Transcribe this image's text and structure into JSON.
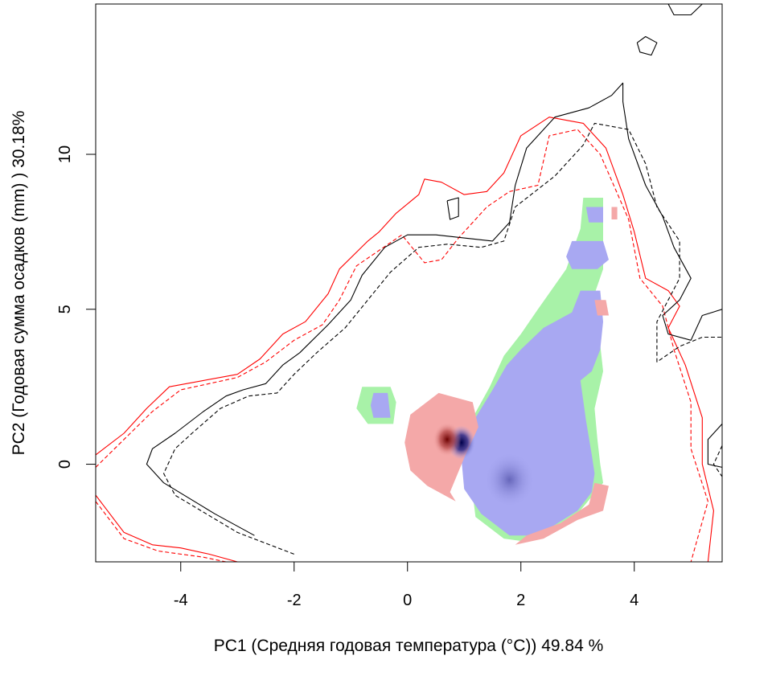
{
  "chart_data": {
    "type": "heatmap",
    "title": "",
    "xlabel": "PC1 (Средняя годовая температура (°C)) 49.84 %",
    "ylabel": "PC2 (Годовая сумма осадков  (mm) ) 30.18%",
    "xlim": [
      -5.5,
      5.55
    ],
    "ylim": [
      -3.15,
      14.85
    ],
    "x_ticks": [
      -4,
      -2,
      0,
      2,
      4
    ],
    "y_ticks": [
      0,
      5,
      10
    ],
    "x_tick_labels": [
      "-4",
      "-2",
      "0",
      "2",
      "4"
    ],
    "y_tick_labels": [
      "0",
      "5",
      "10"
    ],
    "grid": false,
    "colors": {
      "stable": "#a8a8f2",
      "expansion": "#f4a8a8",
      "unfilling": "#a8f2a8",
      "density_high": "#00004a",
      "density_peak_red": "#6b0000",
      "contour_red": "#ff0000",
      "contour_black": "#000000"
    },
    "contours": [
      {
        "color": "#ff0000",
        "dash": "solid",
        "points": [
          [
            -5.5,
            0.3
          ],
          [
            -5.0,
            1.0
          ],
          [
            -4.6,
            1.8
          ],
          [
            -4.2,
            2.5
          ],
          [
            -3.6,
            2.7
          ],
          [
            -3.0,
            2.9
          ],
          [
            -2.6,
            3.4
          ],
          [
            -2.2,
            4.2
          ],
          [
            -1.8,
            4.6
          ],
          [
            -1.4,
            5.5
          ],
          [
            -1.2,
            6.3
          ],
          [
            -0.7,
            7.2
          ],
          [
            -0.5,
            7.5
          ],
          [
            -0.2,
            8.1
          ],
          [
            0.2,
            8.7
          ],
          [
            0.3,
            9.2
          ],
          [
            0.6,
            9.1
          ],
          [
            1.0,
            8.7
          ],
          [
            1.4,
            8.8
          ],
          [
            1.7,
            9.4
          ],
          [
            2.0,
            10.6
          ],
          [
            2.5,
            11.2
          ],
          [
            3.1,
            11.0
          ],
          [
            3.5,
            10.2
          ],
          [
            3.8,
            8.7
          ],
          [
            4.0,
            7.5
          ],
          [
            4.2,
            6.0
          ],
          [
            4.6,
            5.6
          ],
          [
            4.8,
            5.1
          ],
          [
            4.6,
            4.4
          ],
          [
            4.9,
            3.2
          ],
          [
            5.2,
            1.5
          ],
          [
            5.2,
            0.0
          ],
          [
            5.4,
            -1.5
          ],
          [
            5.3,
            -3.15
          ]
        ]
      },
      {
        "color": "#ff0000",
        "dash": "dashed",
        "points": [
          [
            -5.5,
            -0.1
          ],
          [
            -5.0,
            0.8
          ],
          [
            -4.5,
            1.7
          ],
          [
            -4.0,
            2.4
          ],
          [
            -3.5,
            2.6
          ],
          [
            -3.0,
            2.8
          ],
          [
            -2.5,
            3.3
          ],
          [
            -2.0,
            4.0
          ],
          [
            -1.5,
            4.5
          ],
          [
            -1.2,
            5.3
          ],
          [
            -0.9,
            6.4
          ],
          [
            -0.5,
            6.9
          ],
          [
            -0.1,
            7.4
          ],
          [
            0.3,
            6.5
          ],
          [
            0.6,
            6.6
          ],
          [
            0.9,
            7.3
          ],
          [
            1.4,
            8.3
          ],
          [
            1.8,
            8.8
          ],
          [
            2.3,
            9.0
          ],
          [
            2.5,
            10.6
          ],
          [
            3.0,
            10.8
          ],
          [
            3.4,
            10.0
          ],
          [
            3.9,
            7.9
          ],
          [
            4.1,
            6.0
          ],
          [
            4.5,
            5.1
          ],
          [
            4.7,
            3.7
          ],
          [
            5.0,
            2.0
          ],
          [
            5.0,
            0.5
          ],
          [
            5.3,
            -1.2
          ],
          [
            5.0,
            -3.15
          ]
        ]
      },
      {
        "color": "#ff0000",
        "dash": "solid",
        "points": [
          [
            -5.5,
            -1.0
          ],
          [
            -5.0,
            -2.2
          ],
          [
            -4.5,
            -2.6
          ],
          [
            -4.0,
            -2.7
          ],
          [
            -3.5,
            -2.9
          ],
          [
            -3.0,
            -3.15
          ]
        ]
      },
      {
        "color": "#ff0000",
        "dash": "dashed",
        "points": [
          [
            -5.5,
            -1.2
          ],
          [
            -5.0,
            -2.4
          ],
          [
            -4.4,
            -2.8
          ],
          [
            -3.6,
            -3.0
          ],
          [
            -3.2,
            -3.15
          ]
        ]
      },
      {
        "color": "#000000",
        "dash": "solid",
        "points": [
          [
            -2.7,
            -2.3
          ],
          [
            -3.4,
            -1.6
          ],
          [
            -4.3,
            -0.6
          ],
          [
            -4.6,
            0.0
          ],
          [
            -4.5,
            0.5
          ],
          [
            -4.1,
            1.0
          ],
          [
            -3.6,
            1.7
          ],
          [
            -3.2,
            2.2
          ],
          [
            -2.9,
            2.4
          ],
          [
            -2.5,
            2.6
          ],
          [
            -2.2,
            3.2
          ],
          [
            -1.9,
            3.6
          ],
          [
            -1.4,
            4.5
          ],
          [
            -1.0,
            5.3
          ],
          [
            -0.8,
            6.1
          ],
          [
            -0.4,
            7.0
          ],
          [
            0.0,
            7.4
          ],
          [
            0.5,
            7.4
          ],
          [
            1.0,
            7.3
          ],
          [
            1.5,
            7.2
          ],
          [
            1.8,
            7.8
          ],
          [
            1.9,
            9.0
          ],
          [
            2.1,
            10.2
          ],
          [
            2.6,
            11.2
          ],
          [
            3.2,
            11.5
          ],
          [
            3.6,
            11.9
          ],
          [
            3.8,
            12.3
          ],
          [
            3.8,
            11.7
          ],
          [
            3.9,
            10.5
          ],
          [
            4.2,
            9.0
          ],
          [
            4.5,
            8.0
          ],
          [
            4.7,
            7.0
          ],
          [
            5.0,
            6.0
          ],
          [
            4.8,
            5.3
          ],
          [
            4.5,
            4.8
          ],
          [
            4.6,
            4.2
          ],
          [
            5.0,
            4.0
          ],
          [
            5.2,
            4.8
          ],
          [
            5.55,
            5.0
          ]
        ]
      },
      {
        "color": "#000000",
        "dash": "dashed",
        "points": [
          [
            -2.0,
            -2.9
          ],
          [
            -3.0,
            -2.2
          ],
          [
            -4.1,
            -1.0
          ],
          [
            -4.3,
            -0.3
          ],
          [
            -4.1,
            0.5
          ],
          [
            -3.8,
            1.0
          ],
          [
            -3.3,
            1.8
          ],
          [
            -2.8,
            2.2
          ],
          [
            -2.3,
            2.3
          ],
          [
            -2.0,
            2.9
          ],
          [
            -1.6,
            3.6
          ],
          [
            -1.1,
            4.4
          ],
          [
            -0.7,
            5.3
          ],
          [
            -0.3,
            6.2
          ],
          [
            0.2,
            7.0
          ],
          [
            0.7,
            7.1
          ],
          [
            1.3,
            7.0
          ],
          [
            1.7,
            7.2
          ],
          [
            1.9,
            8.3
          ],
          [
            2.6,
            9.3
          ],
          [
            3.1,
            10.3
          ],
          [
            3.3,
            11.0
          ],
          [
            3.9,
            10.8
          ],
          [
            4.2,
            9.7
          ],
          [
            4.4,
            8.3
          ],
          [
            4.8,
            7.2
          ],
          [
            4.8,
            6.0
          ],
          [
            4.4,
            4.6
          ],
          [
            4.4,
            3.3
          ],
          [
            4.8,
            3.8
          ],
          [
            5.2,
            4.1
          ],
          [
            5.55,
            4.1
          ]
        ]
      },
      {
        "color": "#000000",
        "dash": "solid",
        "points": [
          [
            5.55,
            1.3
          ],
          [
            5.3,
            0.8
          ],
          [
            5.3,
            0.0
          ],
          [
            5.55,
            -0.1
          ]
        ]
      },
      {
        "color": "#000000",
        "dash": "dashed",
        "points": [
          [
            5.55,
            0.6
          ],
          [
            5.4,
            0.0
          ],
          [
            5.55,
            -0.4
          ]
        ]
      },
      {
        "color": "#000000",
        "dash": "solid",
        "points": [
          [
            0.7,
            8.5
          ],
          [
            0.9,
            8.6
          ],
          [
            0.9,
            8.0
          ],
          [
            0.75,
            7.9
          ],
          [
            0.7,
            8.5
          ]
        ]
      },
      {
        "color": "#000000",
        "dash": "solid",
        "points": [
          [
            4.05,
            13.6
          ],
          [
            4.2,
            13.8
          ],
          [
            4.4,
            13.6
          ],
          [
            4.3,
            13.2
          ],
          [
            4.1,
            13.3
          ],
          [
            4.05,
            13.6
          ]
        ]
      },
      {
        "color": "#000000",
        "dash": "solid",
        "points": [
          [
            4.6,
            14.85
          ],
          [
            4.7,
            14.5
          ],
          [
            5.0,
            14.5
          ],
          [
            5.2,
            14.85
          ]
        ]
      }
    ],
    "heatmap_zones": [
      {
        "category": "unfilling",
        "color": "#a8f2a8",
        "points": [
          [
            3.1,
            8.6
          ],
          [
            3.45,
            8.6
          ],
          [
            3.45,
            6.3
          ],
          [
            3.3,
            5.5
          ],
          [
            3.45,
            3.0
          ],
          [
            3.3,
            1.8
          ],
          [
            3.35,
            0.8
          ],
          [
            3.4,
            0.0
          ],
          [
            3.45,
            -0.6
          ],
          [
            3.0,
            -1.6
          ],
          [
            2.1,
            -2.5
          ],
          [
            1.7,
            -2.4
          ],
          [
            1.2,
            -1.7
          ],
          [
            1.1,
            -0.2
          ],
          [
            1.15,
            1.5
          ],
          [
            1.45,
            2.5
          ],
          [
            1.7,
            3.5
          ],
          [
            2.0,
            4.2
          ],
          [
            2.3,
            5.0
          ],
          [
            2.8,
            6.3
          ],
          [
            3.05,
            7.6
          ],
          [
            3.1,
            8.6
          ]
        ]
      },
      {
        "category": "unfilling",
        "color": "#a8f2a8",
        "points": [
          [
            -0.8,
            2.5
          ],
          [
            -0.3,
            2.5
          ],
          [
            -0.2,
            2.0
          ],
          [
            -0.25,
            1.3
          ],
          [
            -0.7,
            1.3
          ],
          [
            -0.9,
            1.8
          ],
          [
            -0.8,
            2.5
          ]
        ]
      },
      {
        "category": "stable",
        "color": "#a8a8f2",
        "points": [
          [
            3.15,
            8.3
          ],
          [
            3.45,
            8.3
          ],
          [
            3.45,
            7.8
          ],
          [
            3.2,
            7.8
          ]
        ]
      },
      {
        "category": "stable",
        "color": "#a8a8f2",
        "points": [
          [
            2.9,
            7.2
          ],
          [
            3.45,
            7.2
          ],
          [
            3.55,
            6.6
          ],
          [
            3.35,
            6.3
          ],
          [
            2.9,
            6.3
          ],
          [
            2.8,
            6.7
          ],
          [
            2.9,
            7.2
          ]
        ]
      },
      {
        "category": "stable",
        "color": "#a8a8f2",
        "points": [
          [
            3.05,
            5.6
          ],
          [
            3.4,
            5.6
          ],
          [
            3.45,
            4.6
          ],
          [
            3.4,
            3.7
          ],
          [
            3.25,
            3.0
          ],
          [
            3.05,
            2.7
          ],
          [
            3.15,
            1.4
          ],
          [
            3.25,
            0.3
          ],
          [
            3.3,
            -0.3
          ],
          [
            3.25,
            -0.9
          ],
          [
            3.0,
            -1.5
          ],
          [
            2.3,
            -2.3
          ],
          [
            1.8,
            -2.3
          ],
          [
            1.3,
            -1.6
          ],
          [
            1.0,
            -0.8
          ],
          [
            0.95,
            0.2
          ],
          [
            1.2,
            1.5
          ],
          [
            1.5,
            2.4
          ],
          [
            1.75,
            3.2
          ],
          [
            2.0,
            3.7
          ],
          [
            2.4,
            4.4
          ],
          [
            2.9,
            4.9
          ],
          [
            3.05,
            5.6
          ]
        ]
      },
      {
        "category": "stable",
        "color": "#a8a8f2",
        "points": [
          [
            -0.6,
            2.3
          ],
          [
            -0.35,
            2.3
          ],
          [
            -0.3,
            1.5
          ],
          [
            -0.6,
            1.5
          ],
          [
            -0.65,
            1.9
          ]
        ]
      },
      {
        "category": "expansion",
        "color": "#f4a8a8",
        "points": [
          [
            0.55,
            2.3
          ],
          [
            1.15,
            2.0
          ],
          [
            1.25,
            1.2
          ],
          [
            1.0,
            0.2
          ],
          [
            0.75,
            -0.9
          ],
          [
            0.85,
            -1.2
          ],
          [
            0.35,
            -0.7
          ],
          [
            0.05,
            -0.2
          ],
          [
            -0.05,
            0.7
          ],
          [
            0.05,
            1.6
          ],
          [
            0.55,
            2.3
          ]
        ]
      },
      {
        "category": "expansion",
        "color": "#f4a8a8",
        "points": [
          [
            3.3,
            5.3
          ],
          [
            3.5,
            5.3
          ],
          [
            3.55,
            4.8
          ],
          [
            3.35,
            4.8
          ]
        ]
      },
      {
        "category": "expansion",
        "color": "#f4a8a8",
        "points": [
          [
            3.3,
            -0.6
          ],
          [
            3.55,
            -0.7
          ],
          [
            3.45,
            -1.5
          ],
          [
            3.0,
            -1.8
          ],
          [
            2.4,
            -2.4
          ],
          [
            1.9,
            -2.6
          ],
          [
            2.1,
            -2.3
          ],
          [
            2.7,
            -1.9
          ],
          [
            3.2,
            -1.3
          ],
          [
            3.3,
            -0.6
          ]
        ]
      },
      {
        "category": "expansion",
        "color": "#f4a8a8",
        "points": [
          [
            3.6,
            8.3
          ],
          [
            3.7,
            8.3
          ],
          [
            3.7,
            7.9
          ],
          [
            3.6,
            7.9
          ]
        ]
      }
    ],
    "density_hotspots": [
      {
        "category": "stable",
        "color": "#00004a",
        "x": 0.95,
        "y": 0.7,
        "rx": 0.25,
        "ry": 0.55
      },
      {
        "category": "stable",
        "color": "#5a5ab0",
        "x": 1.8,
        "y": -0.5,
        "rx": 0.45,
        "ry": 0.9
      },
      {
        "category": "expansion",
        "color": "#6b0000",
        "x": 0.7,
        "y": 0.8,
        "rx": 0.25,
        "ry": 0.55
      }
    ]
  }
}
